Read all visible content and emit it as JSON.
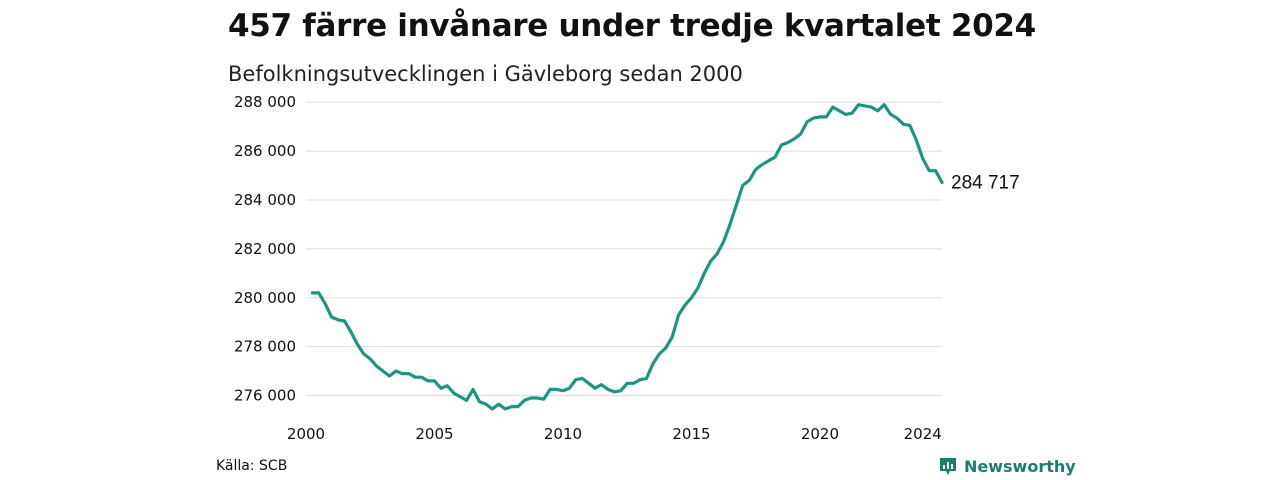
{
  "header": {
    "title": "457 färre invånare under tredje kvartalet 2024",
    "subtitle": "Befolkningsutvecklingen i Gävleborg sedan 2000"
  },
  "footer": {
    "source": "Källa: SCB",
    "brand": "Newsworthy"
  },
  "colors": {
    "line": "#1a9683",
    "grid": "#dddddd",
    "brand": "#1a7f72"
  },
  "chart_data": {
    "type": "line",
    "title": "457 färre invånare under tredje kvartalet 2024",
    "subtitle": "Befolkningsutvecklingen i Gävleborg sedan 2000",
    "xlim": [
      2000,
      2024.75
    ],
    "ylim": [
      275000,
      288500
    ],
    "x_ticks": [
      2000,
      2005,
      2010,
      2015,
      2020,
      2024
    ],
    "y_ticks": [
      276000,
      278000,
      280000,
      282000,
      284000,
      286000,
      288000
    ],
    "y_tick_labels": [
      "276 000",
      "278 000",
      "280 000",
      "282 000",
      "284 000",
      "286 000",
      "288 000"
    ],
    "grid": "horizontal",
    "end_label": "284 717",
    "series": [
      {
        "x": [
          2000.25,
          2000.5,
          2000.75,
          2001,
          2001.25,
          2001.5,
          2001.75,
          2002,
          2002.25,
          2002.5,
          2002.75,
          2003,
          2003.25,
          2003.5,
          2003.75,
          2004,
          2004.25,
          2004.5,
          2004.75,
          2005,
          2005.25,
          2005.5,
          2005.75,
          2006,
          2006.25,
          2006.5,
          2006.75,
          2007,
          2007.25,
          2007.5,
          2007.75,
          2008,
          2008.25,
          2008.5,
          2008.75,
          2009,
          2009.25,
          2009.5,
          2009.75,
          2010,
          2010.25,
          2010.5,
          2010.75,
          2011,
          2011.25,
          2011.5,
          2011.75,
          2012,
          2012.25,
          2012.5,
          2012.75,
          2013,
          2013.25,
          2013.5,
          2013.75,
          2014,
          2014.25,
          2014.5,
          2014.75,
          2015,
          2015.25,
          2015.5,
          2015.75,
          2016,
          2016.25,
          2016.5,
          2016.75,
          2017,
          2017.25,
          2017.5,
          2017.75,
          2018,
          2018.25,
          2018.5,
          2018.75,
          2019,
          2019.25,
          2019.5,
          2019.75,
          2020,
          2020.25,
          2020.5,
          2020.75,
          2021,
          2021.25,
          2021.5,
          2021.75,
          2022,
          2022.25,
          2022.5,
          2022.75,
          2023,
          2023.25,
          2023.5,
          2023.75,
          2024,
          2024.25,
          2024.5,
          2024.75
        ],
        "values": [
          280200,
          280200,
          279750,
          279200,
          279100,
          279050,
          278600,
          278100,
          277700,
          277500,
          277200,
          277000,
          276800,
          277000,
          276900,
          276900,
          276750,
          276750,
          276600,
          276600,
          276300,
          276400,
          276100,
          275950,
          275800,
          276250,
          275750,
          275650,
          275450,
          275650,
          275450,
          275550,
          275550,
          275800,
          275900,
          275900,
          275850,
          276250,
          276250,
          276200,
          276300,
          276650,
          276700,
          276500,
          276300,
          276450,
          276250,
          276150,
          276200,
          276500,
          276500,
          276650,
          276700,
          277300,
          277700,
          277950,
          278400,
          279300,
          279700,
          280000,
          280400,
          281000,
          281500,
          281800,
          282300,
          283000,
          283800,
          284600,
          284800,
          285250,
          285450,
          285600,
          285750,
          286250,
          286350,
          286500,
          286700,
          287200,
          287350,
          287400,
          287400,
          287800,
          287650,
          287500,
          287550,
          287900,
          287850,
          287800,
          287650,
          287900,
          287500,
          287350,
          287100,
          287050,
          286450,
          285700,
          285200,
          285200,
          284717
        ]
      }
    ]
  }
}
